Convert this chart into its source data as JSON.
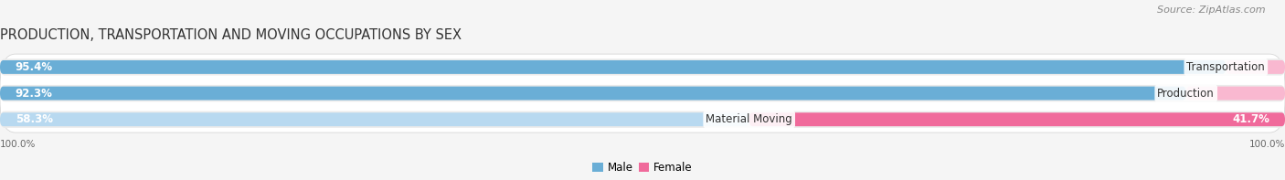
{
  "title": "PRODUCTION, TRANSPORTATION AND MOVING OCCUPATIONS BY SEX",
  "source": "Source: ZipAtlas.com",
  "categories": [
    "Transportation",
    "Production",
    "Material Moving"
  ],
  "male_values": [
    95.4,
    92.3,
    58.3
  ],
  "female_values": [
    4.6,
    7.7,
    41.7
  ],
  "male_color_dark": "#6aaed6",
  "male_color_light": "#b8d9f0",
  "female_color_dark": "#f06a9b",
  "female_color_light": "#f9b8d0",
  "row_bg_color": "#ebebeb",
  "outer_bg": "#f5f5f5",
  "title_fontsize": 10.5,
  "source_fontsize": 8,
  "bar_label_fontsize": 8.5,
  "cat_label_fontsize": 8.5,
  "axis_label": "100.0%",
  "legend_male": "Male",
  "legend_female": "Female"
}
